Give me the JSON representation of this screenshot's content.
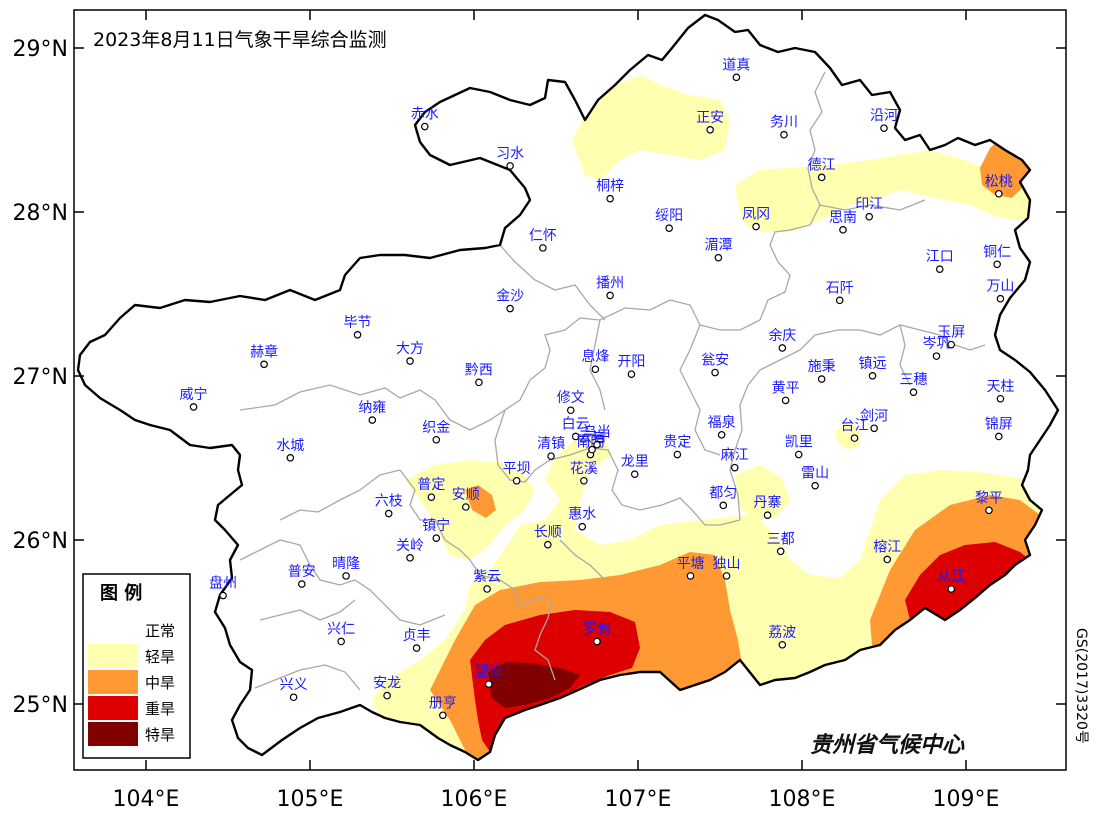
{
  "title": "2023年8月11日气象干旱综合监测",
  "lat_labels": [
    "29°N",
    "28°N",
    "27°N",
    "26°N",
    "25°N"
  ],
  "lon_labels": [
    "104°E",
    "105°E",
    "106°E",
    "107°E",
    "108°E",
    "109°E"
  ],
  "legend": {
    "title": "图  例",
    "items": [
      {
        "label": "正常",
        "color": "#ffffff"
      },
      {
        "label": "轻旱",
        "color": "#ffffb0"
      },
      {
        "label": "中旱",
        "color": "#ff9933"
      },
      {
        "label": "重旱",
        "color": "#dd0000"
      },
      {
        "label": "特旱",
        "color": "#800000"
      }
    ]
  },
  "source": "贵州省气候中心",
  "map_code": "GS(2017)3320号",
  "cities": [
    {
      "name": "道真",
      "lon": 107.6,
      "lat": 28.87
    },
    {
      "name": "赤水",
      "lon": 105.7,
      "lat": 28.57
    },
    {
      "name": "沿河",
      "lon": 108.5,
      "lat": 28.56
    },
    {
      "name": "正安",
      "lon": 107.44,
      "lat": 28.55
    },
    {
      "name": "务川",
      "lon": 107.89,
      "lat": 28.52
    },
    {
      "name": "习水",
      "lon": 106.22,
      "lat": 28.33
    },
    {
      "name": "德江",
      "lon": 108.12,
      "lat": 28.26
    },
    {
      "name": "松桃",
      "lon": 109.2,
      "lat": 28.16
    },
    {
      "name": "桐梓",
      "lon": 106.83,
      "lat": 28.13
    },
    {
      "name": "绥阳",
      "lon": 107.19,
      "lat": 27.95
    },
    {
      "name": "凤冈",
      "lon": 107.72,
      "lat": 27.96
    },
    {
      "name": "印江",
      "lon": 108.41,
      "lat": 28.02
    },
    {
      "name": "思南",
      "lon": 108.25,
      "lat": 27.94
    },
    {
      "name": "仁怀",
      "lon": 106.42,
      "lat": 27.83
    },
    {
      "name": "湄潭",
      "lon": 107.49,
      "lat": 27.77
    },
    {
      "name": "江口",
      "lon": 108.84,
      "lat": 27.7
    },
    {
      "name": "铜仁",
      "lon": 109.19,
      "lat": 27.73
    },
    {
      "name": "金沙",
      "lon": 106.22,
      "lat": 27.46
    },
    {
      "name": "播州",
      "lon": 106.83,
      "lat": 27.54
    },
    {
      "name": "石阡",
      "lon": 108.23,
      "lat": 27.51
    },
    {
      "name": "万山",
      "lon": 109.21,
      "lat": 27.52
    },
    {
      "name": "毕节",
      "lon": 105.29,
      "lat": 27.3
    },
    {
      "name": "余庆",
      "lon": 107.88,
      "lat": 27.22
    },
    {
      "name": "岑巩",
      "lon": 108.82,
      "lat": 27.17
    },
    {
      "name": "玉屏",
      "lon": 108.91,
      "lat": 27.24
    },
    {
      "name": "大方",
      "lon": 105.61,
      "lat": 27.14
    },
    {
      "name": "赫章",
      "lon": 104.72,
      "lat": 27.12
    },
    {
      "name": "息烽",
      "lon": 106.74,
      "lat": 27.09
    },
    {
      "name": "开阳",
      "lon": 106.96,
      "lat": 27.06
    },
    {
      "name": "瓮安",
      "lon": 107.47,
      "lat": 27.07
    },
    {
      "name": "施秉",
      "lon": 108.12,
      "lat": 27.03
    },
    {
      "name": "镇远",
      "lon": 108.43,
      "lat": 27.05
    },
    {
      "name": "三穗",
      "lon": 108.68,
      "lat": 26.95
    },
    {
      "name": "黔西",
      "lon": 106.03,
      "lat": 27.01
    },
    {
      "name": "威宁",
      "lon": 104.29,
      "lat": 26.86
    },
    {
      "name": "天柱",
      "lon": 109.21,
      "lat": 26.91
    },
    {
      "name": "修文",
      "lon": 106.59,
      "lat": 26.84
    },
    {
      "name": "黄平",
      "lon": 107.9,
      "lat": 26.9
    },
    {
      "name": "纳雍",
      "lon": 105.38,
      "lat": 26.78
    },
    {
      "name": "白云",
      "lon": 106.62,
      "lat": 26.68
    },
    {
      "name": "南明",
      "lon": 106.71,
      "lat": 26.57
    },
    {
      "name": "云岩",
      "lon": 106.72,
      "lat": 26.6
    },
    {
      "name": "乌当",
      "lon": 106.75,
      "lat": 26.63
    },
    {
      "name": "福泉",
      "lon": 107.51,
      "lat": 26.69
    },
    {
      "name": "台江",
      "lon": 108.32,
      "lat": 26.67
    },
    {
      "name": "剑河",
      "lon": 108.44,
      "lat": 26.73
    },
    {
      "name": "织金",
      "lon": 105.77,
      "lat": 26.66
    },
    {
      "name": "清镇",
      "lon": 106.47,
      "lat": 26.56
    },
    {
      "name": "水城",
      "lon": 104.88,
      "lat": 26.55
    },
    {
      "name": "贵定",
      "lon": 107.24,
      "lat": 26.57
    },
    {
      "name": "凯里",
      "lon": 107.98,
      "lat": 26.57
    },
    {
      "name": "麻江",
      "lon": 107.59,
      "lat": 26.49
    },
    {
      "name": "锦屏",
      "lon": 109.2,
      "lat": 26.68
    },
    {
      "name": "花溪",
      "lon": 106.67,
      "lat": 26.41
    },
    {
      "name": "龙里",
      "lon": 106.98,
      "lat": 26.45
    },
    {
      "name": "平坝",
      "lon": 106.26,
      "lat": 26.41
    },
    {
      "name": "雷山",
      "lon": 108.08,
      "lat": 26.38
    },
    {
      "name": "普定",
      "lon": 105.74,
      "lat": 26.31
    },
    {
      "name": "都匀",
      "lon": 107.52,
      "lat": 26.26
    },
    {
      "name": "安顺",
      "lon": 105.95,
      "lat": 26.25
    },
    {
      "name": "六枝",
      "lon": 105.48,
      "lat": 26.21
    },
    {
      "name": "丹寨",
      "lon": 107.79,
      "lat": 26.2
    },
    {
      "name": "黎平",
      "lon": 109.14,
      "lat": 26.23
    },
    {
      "name": "惠水",
      "lon": 106.66,
      "lat": 26.13
    },
    {
      "name": "镇宁",
      "lon": 105.77,
      "lat": 26.06
    },
    {
      "name": "长顺",
      "lon": 106.45,
      "lat": 26.02
    },
    {
      "name": "三都",
      "lon": 107.87,
      "lat": 25.98
    },
    {
      "name": "关岭",
      "lon": 105.61,
      "lat": 25.94
    },
    {
      "name": "榕江",
      "lon": 108.52,
      "lat": 25.93
    },
    {
      "name": "平塘",
      "lon": 107.32,
      "lat": 25.83
    },
    {
      "name": "独山",
      "lon": 107.54,
      "lat": 25.83
    },
    {
      "name": "晴隆",
      "lon": 105.22,
      "lat": 25.83
    },
    {
      "name": "普安",
      "lon": 104.95,
      "lat": 25.78
    },
    {
      "name": "紫云",
      "lon": 106.08,
      "lat": 25.75
    },
    {
      "name": "从江",
      "lon": 108.91,
      "lat": 25.75
    },
    {
      "name": "盘州",
      "lon": 104.47,
      "lat": 25.71
    },
    {
      "name": "兴仁",
      "lon": 105.19,
      "lat": 25.43
    },
    {
      "name": "罗甸",
      "lon": 106.75,
      "lat": 25.43
    },
    {
      "name": "贞丰",
      "lon": 105.65,
      "lat": 25.39
    },
    {
      "name": "荔波",
      "lon": 107.88,
      "lat": 25.41
    },
    {
      "name": "望谟",
      "lon": 106.09,
      "lat": 25.17
    },
    {
      "name": "兴义",
      "lon": 104.9,
      "lat": 25.09
    },
    {
      "name": "安龙",
      "lon": 105.47,
      "lat": 25.1
    },
    {
      "name": "册亨",
      "lon": 105.81,
      "lat": 24.98
    }
  ]
}
